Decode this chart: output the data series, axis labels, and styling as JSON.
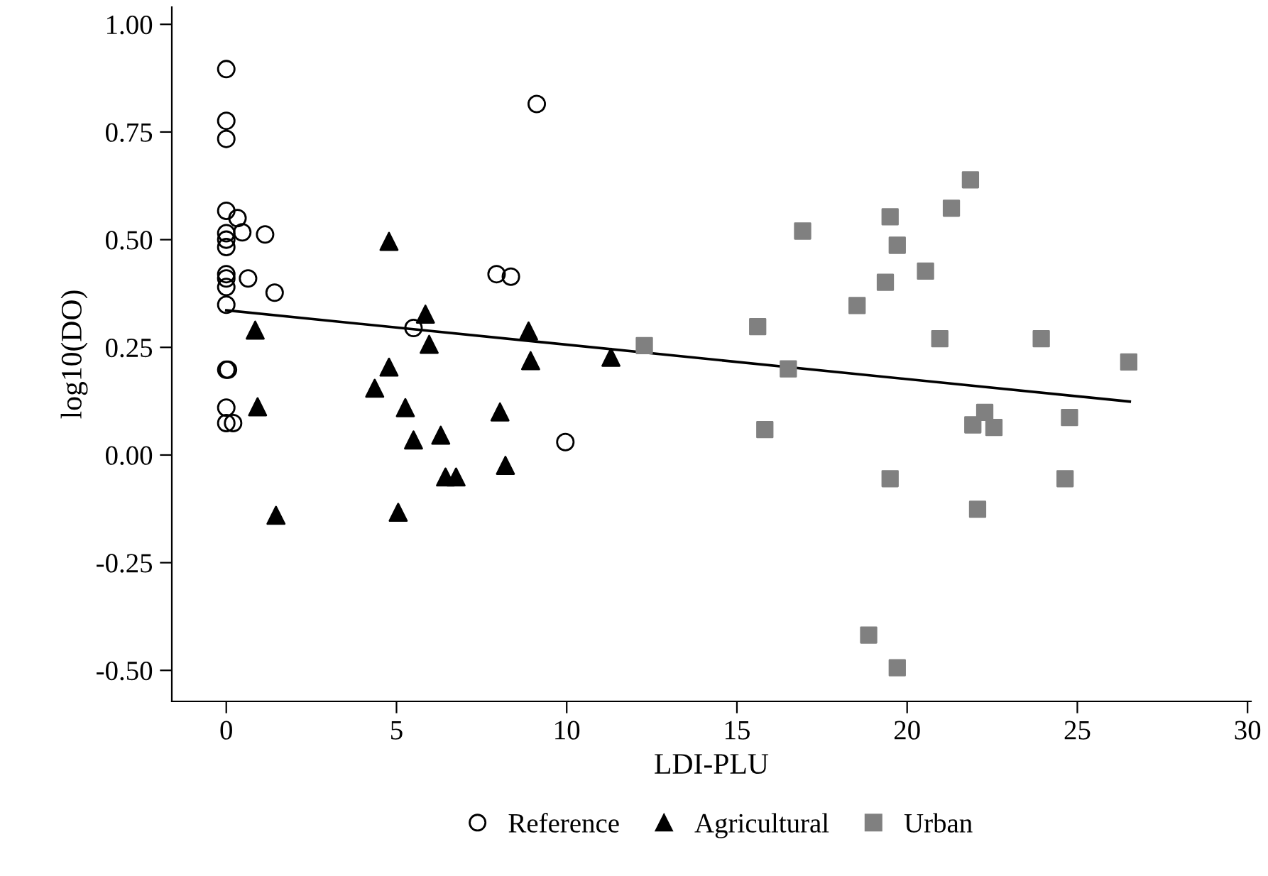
{
  "chart_data": {
    "type": "scatter",
    "xlabel": "LDI-PLU",
    "ylabel": "log10(DO)",
    "xlim": [
      -1.6,
      30.1
    ],
    "ylim": [
      -0.572,
      1.04
    ],
    "xticks": [
      0,
      5,
      10,
      15,
      20,
      25,
      30
    ],
    "yticks": [
      {
        "value": -0.5,
        "label": "-0.50"
      },
      {
        "value": -0.25,
        "label": "-0.25"
      },
      {
        "value": 0,
        "label": "0.00"
      },
      {
        "value": 0.25,
        "label": "0.25"
      },
      {
        "value": 0.5,
        "label": "0.50"
      },
      {
        "value": 0.75,
        "label": "0.75"
      },
      {
        "value": 1.0,
        "label": "1.00"
      }
    ],
    "grid": false,
    "legend": "bottom",
    "series": [
      {
        "name": "Reference",
        "marker": "circle",
        "color": "#000000",
        "x": [
          0,
          0,
          0,
          0,
          0.33,
          0,
          0.47,
          0,
          0,
          1.14,
          0,
          0,
          0.64,
          0,
          1.42,
          0,
          5.5,
          7.94,
          8.36,
          9.12,
          0,
          0.05,
          0,
          0,
          0.2,
          9.96
        ],
        "values": [
          0.896,
          0.776,
          0.734,
          0.567,
          0.55,
          0.515,
          0.517,
          0.5,
          0.483,
          0.512,
          0.42,
          0.41,
          0.41,
          0.39,
          0.377,
          0.349,
          0.295,
          0.42,
          0.414,
          0.815,
          0.198,
          0.198,
          0.11,
          0.074,
          0.074,
          0.03
        ]
      },
      {
        "name": "Agricultural",
        "marker": "triangle",
        "color": "#000000",
        "x": [
          4.78,
          5.85,
          0.85,
          5.96,
          8.88,
          8.94,
          11.3,
          4.78,
          4.36,
          0.92,
          5.26,
          8.04,
          6.3,
          5.5,
          6.44,
          6.75,
          8.2,
          1.46,
          5.05
        ],
        "values": [
          0.496,
          0.327,
          0.29,
          0.257,
          0.288,
          0.219,
          0.227,
          0.204,
          0.155,
          0.112,
          0.11,
          0.1,
          0.046,
          0.035,
          -0.051,
          -0.051,
          -0.024,
          -0.14,
          -0.133
        ]
      },
      {
        "name": "Urban",
        "marker": "square",
        "color": "#808080",
        "x": [
          21.86,
          21.3,
          19.5,
          16.93,
          19.71,
          20.54,
          19.36,
          18.53,
          15.61,
          12.28,
          20.96,
          23.94,
          26.51,
          16.51,
          22.28,
          21.93,
          22.55,
          24.77,
          15.82,
          19.5,
          24.64,
          22.07,
          18.87,
          19.71
        ],
        "values": [
          0.639,
          0.573,
          0.553,
          0.52,
          0.487,
          0.427,
          0.401,
          0.347,
          0.298,
          0.254,
          0.27,
          0.27,
          0.216,
          0.2,
          0.099,
          0.07,
          0.064,
          0.087,
          0.059,
          -0.055,
          -0.055,
          -0.126,
          -0.418,
          -0.494
        ]
      },
      {
        "type": "line",
        "line_style": "solid",
        "color": "#000000",
        "x": [
          0,
          26.54
        ],
        "values": [
          0.336,
          0.124
        ]
      }
    ]
  }
}
